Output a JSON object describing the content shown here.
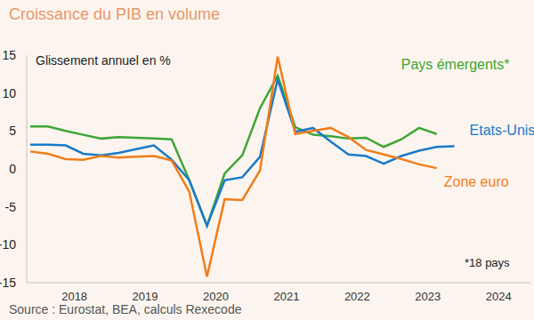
{
  "chart_data": {
    "type": "line",
    "title": "Croissance du PIB en volume",
    "y_label": "Glissement annuel en %",
    "annotations": [
      "*18 pays"
    ],
    "source": "Source : Eurostat, BEA, calculs Rexecode",
    "categories": [
      null,
      null,
      "2018",
      null,
      null,
      null,
      "2019",
      null,
      null,
      null,
      "2020",
      null,
      null,
      null,
      "2021",
      null,
      null,
      null,
      "2022",
      null,
      null,
      null,
      "2023",
      null,
      null,
      null,
      "2024",
      null,
      null
    ],
    "series": [
      {
        "name": "Pays émergents*",
        "color": "#3fa535",
        "values": [
          5.6,
          5.6,
          5.0,
          4.5,
          4.0,
          4.2,
          4.1,
          4.0,
          3.9,
          -1.5,
          -7.5,
          -0.6,
          1.8,
          8.0,
          12.3,
          5.5,
          4.5,
          4.3,
          4.0,
          4.1,
          2.9,
          3.9,
          5.4,
          4.6,
          null,
          null,
          null,
          null,
          null
        ]
      },
      {
        "name": "Etats-Unis",
        "color": "#1a7ac9",
        "values": [
          3.2,
          3.2,
          3.1,
          2.0,
          1.8,
          2.1,
          2.6,
          3.1,
          1.2,
          -1.5,
          -7.5,
          -1.5,
          -1.1,
          1.6,
          11.8,
          4.9,
          5.4,
          3.6,
          1.9,
          1.7,
          0.7,
          1.7,
          2.4,
          2.9,
          3.0,
          null,
          null,
          null,
          null
        ]
      },
      {
        "name": "Zone euro",
        "color": "#f07d1a",
        "values": [
          2.3,
          2.0,
          1.3,
          1.2,
          1.7,
          1.5,
          1.6,
          1.7,
          1.1,
          -3.0,
          -14.2,
          -4.0,
          -4.1,
          -0.2,
          14.8,
          4.6,
          5.0,
          5.4,
          4.2,
          2.5,
          1.9,
          1.3,
          0.6,
          0.1,
          null,
          null,
          null,
          null,
          null
        ]
      }
    ],
    "ylim": [
      -15,
      15
    ],
    "yticks": [
      -15,
      -10,
      -5,
      0,
      5,
      10,
      15
    ],
    "grid": false
  }
}
